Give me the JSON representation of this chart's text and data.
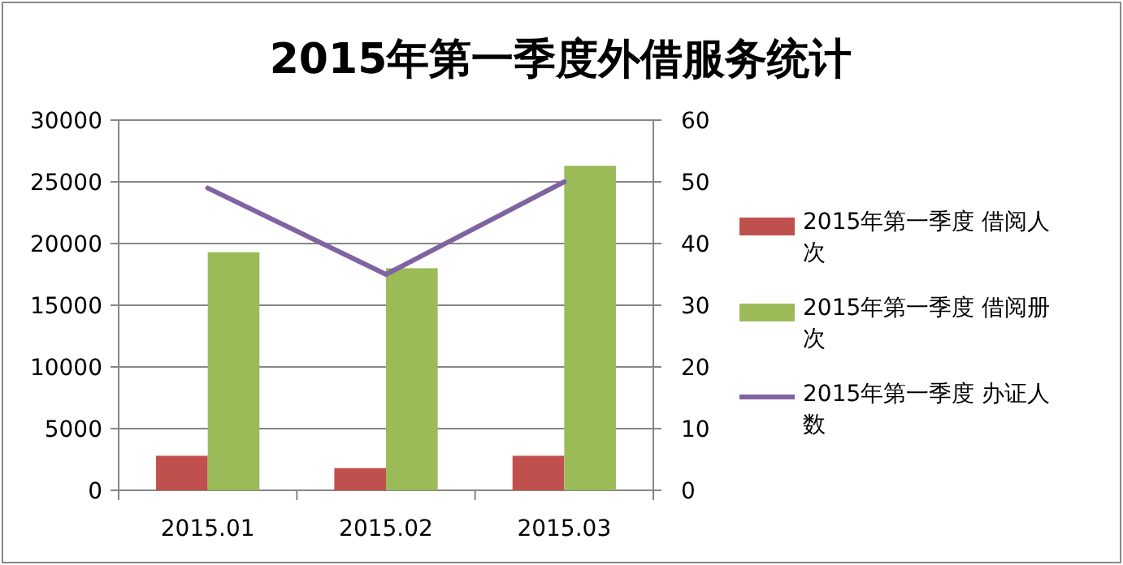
{
  "chart_data": {
    "type": "bar",
    "title": "2015年第一季度外借服务统计",
    "categories": [
      "2015.01",
      "2015.02",
      "2015.03"
    ],
    "series": [
      {
        "name": "2015年第一季度 借阅人次",
        "color": "#c0504d",
        "values": [
          2800,
          1800,
          2800
        ]
      },
      {
        "name": "2015年第一季度 借阅册次",
        "color": "#9bbb59",
        "values": [
          19300,
          18000,
          26300
        ]
      },
      {
        "name": "2015年第一季度 办证人数",
        "color": "#8064a2",
        "type": "line",
        "axis": "y2",
        "values": [
          49,
          35,
          50
        ]
      }
    ],
    "ylim": [
      0,
      30000
    ],
    "yticks": [
      0,
      5000,
      10000,
      15000,
      20000,
      25000,
      30000
    ],
    "y2lim": [
      0,
      60
    ],
    "y2ticks": [
      0,
      10,
      20,
      30,
      40,
      50,
      60
    ],
    "grid": "y",
    "legend": "right",
    "marker": "none"
  }
}
